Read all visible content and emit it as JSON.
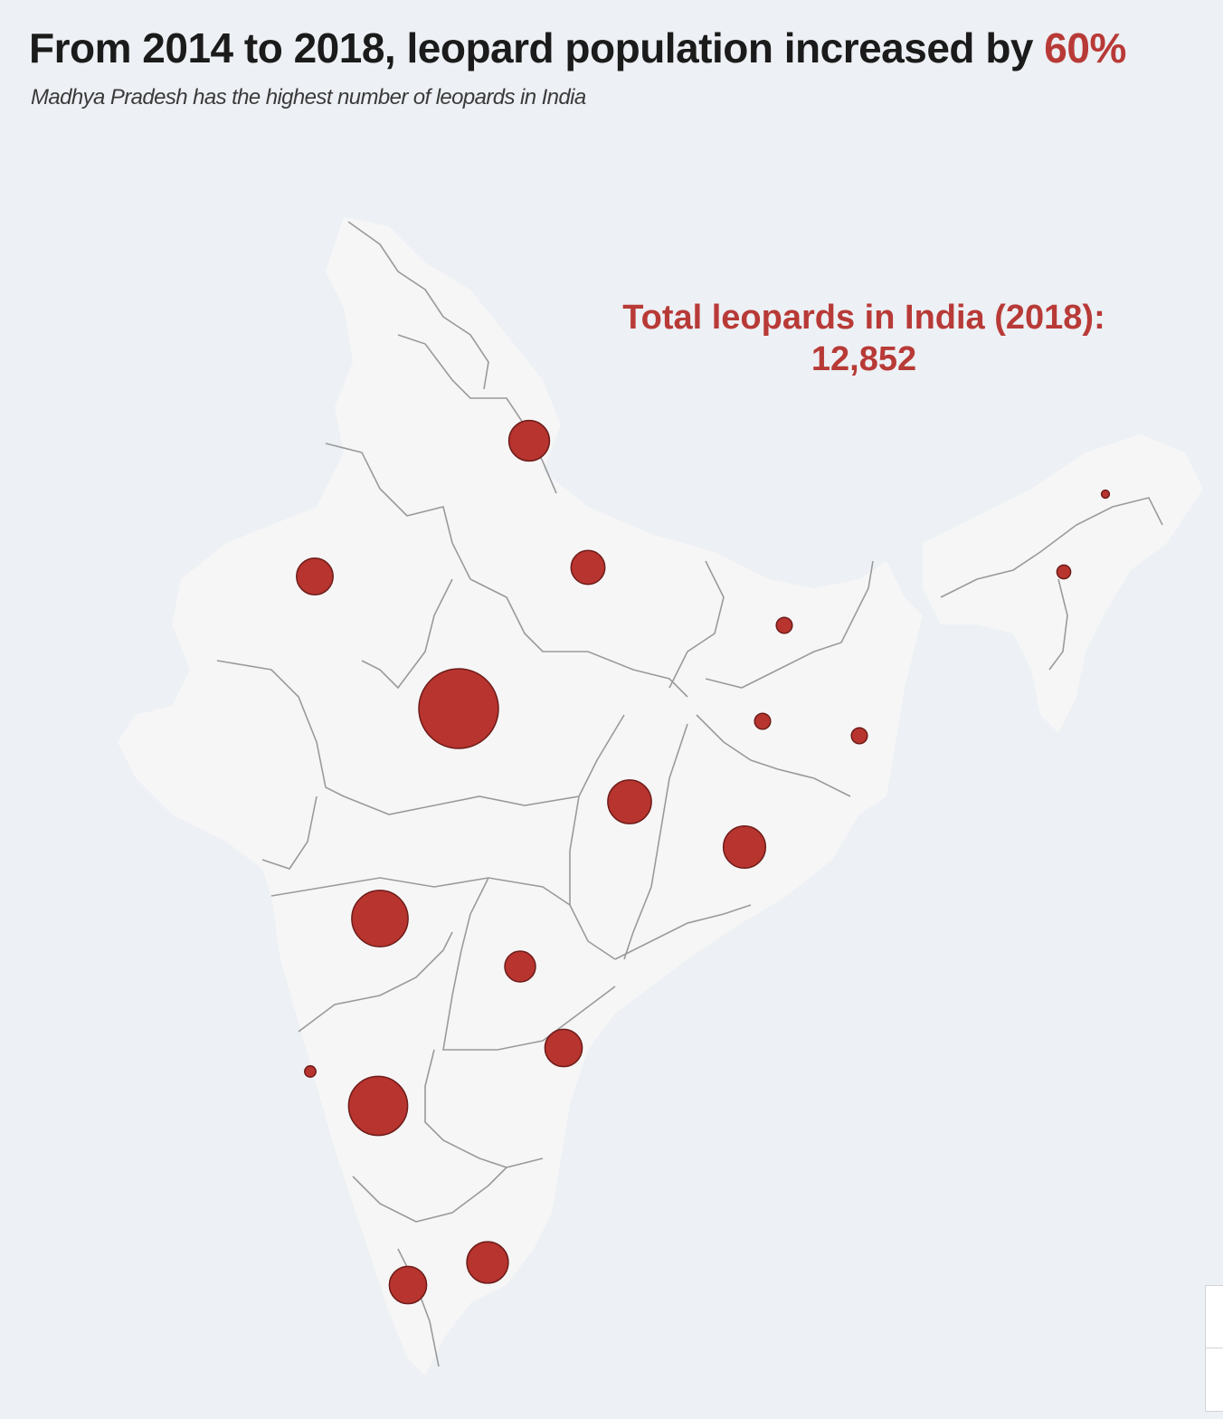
{
  "header": {
    "title_prefix": "From 2014 to 2018, leopard population increased by ",
    "title_accent": "60%",
    "subtitle": "Madhya Pradesh has the highest number of leopards in India"
  },
  "callout": {
    "line1": "Total leopards in India (2018):",
    "line2": "12,852"
  },
  "colors": {
    "background": "#edf0f4",
    "land": "#f6f6f6",
    "border": "#9a9a9a",
    "bubble": "#b8342f",
    "accent_text": "#b83a37"
  },
  "map": {
    "bubbles": [
      {
        "name": "uttarakhand",
        "relative_size": 0.26
      },
      {
        "name": "rajasthan",
        "relative_size": 0.21
      },
      {
        "name": "uttar-pradesh",
        "relative_size": 0.18
      },
      {
        "name": "madhya-pradesh",
        "relative_size": 1.0
      },
      {
        "name": "chhattisgarh",
        "relative_size": 0.3
      },
      {
        "name": "odisha",
        "relative_size": 0.28
      },
      {
        "name": "maharashtra",
        "relative_size": 0.5
      },
      {
        "name": "telangana",
        "relative_size": 0.15
      },
      {
        "name": "andhra-pradesh",
        "relative_size": 0.22
      },
      {
        "name": "karnataka",
        "relative_size": 0.55
      },
      {
        "name": "goa",
        "relative_size": 0.02
      },
      {
        "name": "tamil-nadu",
        "relative_size": 0.27
      },
      {
        "name": "kerala",
        "relative_size": 0.22
      },
      {
        "name": "bihar",
        "relative_size": 0.04
      },
      {
        "name": "jharkhand",
        "relative_size": 0.04
      },
      {
        "name": "west-bengal",
        "relative_size": 0.04
      },
      {
        "name": "assam",
        "relative_size": 0.03
      },
      {
        "name": "arunachal-pradesh",
        "relative_size": 0.01
      }
    ]
  },
  "controls": {
    "zoom_icon": "zoom-control-icon"
  }
}
